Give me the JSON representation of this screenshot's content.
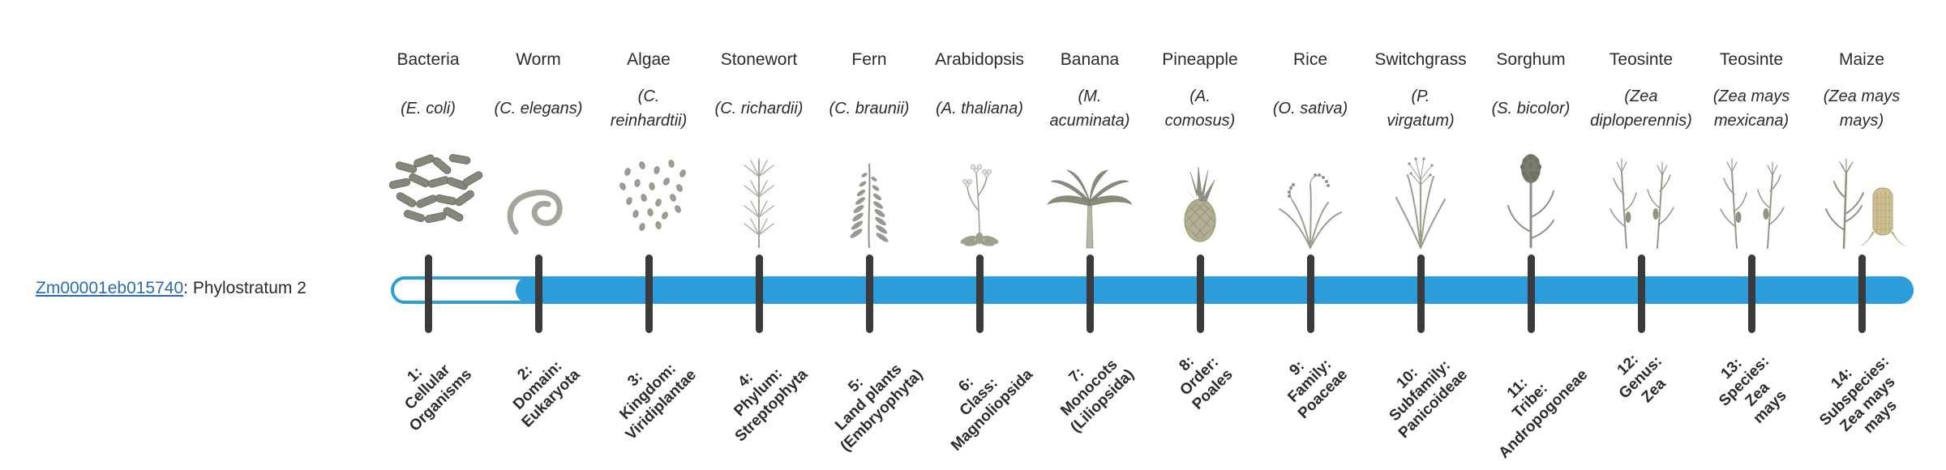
{
  "gene": {
    "id": "Zm00001eb015740",
    "annotation": ": Phylostratum 2"
  },
  "bar": {
    "filled_from_stratum": 2,
    "strata_total": 14
  },
  "colors": {
    "bar": "#2D9CDB",
    "tick": "#3a3a3a",
    "link": "#2b6cb0",
    "text": "#2b2b2b"
  },
  "organisms": [
    {
      "common": "Bacteria",
      "sci": "(E. coli)",
      "icon": "bacteria",
      "stratum": "1:\nCellular\nOrganisms"
    },
    {
      "common": "Worm",
      "sci": "(C. elegans)",
      "icon": "worm",
      "stratum": "2:\nDomain:\nEukaryota"
    },
    {
      "common": "Algae",
      "sci": "(C.\nreinhardtii)",
      "icon": "algae",
      "stratum": "3:\nKingdom:\nViridiplantae"
    },
    {
      "common": "Stonewort",
      "sci": "(C. richardii)",
      "icon": "stonewort",
      "stratum": "4:\nPhylum:\nStreptophyta"
    },
    {
      "common": "Fern",
      "sci": "(C. braunii)",
      "icon": "fern",
      "stratum": "5:\nLand plants\n(Embryophyta)"
    },
    {
      "common": "Arabidopsis",
      "sci": "(A. thaliana)",
      "icon": "arabidopsis",
      "stratum": "6:\nClass:\nMagnoliopsida"
    },
    {
      "common": "Banana",
      "sci": "(M.\nacuminata)",
      "icon": "banana",
      "stratum": "7:\nMonocots\n(Liliopsida)"
    },
    {
      "common": "Pineapple",
      "sci": "(A.\ncomosus)",
      "icon": "pineapple",
      "stratum": "8:\nOrder:\nPoales"
    },
    {
      "common": "Rice",
      "sci": "(O. sativa)",
      "icon": "rice",
      "stratum": "9:\nFamily:\nPoaceae"
    },
    {
      "common": "Switchgrass",
      "sci": "(P.\nvirgatum)",
      "icon": "switchgrass",
      "stratum": "10:\nSubfamily:\nPanicoideae"
    },
    {
      "common": "Sorghum",
      "sci": "(S. bicolor)",
      "icon": "sorghum",
      "stratum": "11:\nTribe:\nAndropogoneae"
    },
    {
      "common": "Teosinte",
      "sci": "(Zea\ndiploperennis)",
      "icon": "teosinte",
      "stratum": "12:\nGenus:\nZea"
    },
    {
      "common": "Teosinte",
      "sci": "(Zea mays\nmexicana)",
      "icon": "teosinte",
      "stratum": "13:\nSpecies:\nZea\nmays"
    },
    {
      "common": "Maize",
      "sci": "(Zea mays\nmays)",
      "icon": "maize",
      "stratum": "14:\nSubspecies:\nZea mays\nmays"
    }
  ]
}
